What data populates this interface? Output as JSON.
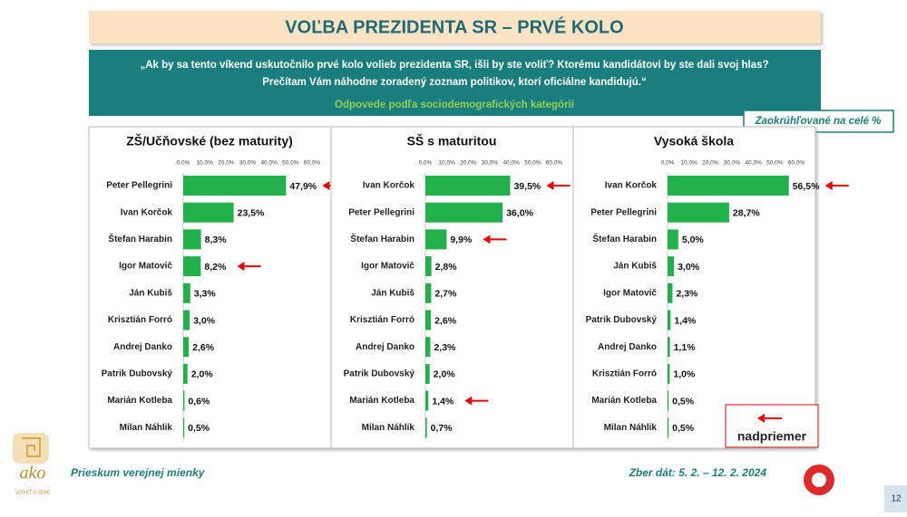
{
  "header": {
    "title": "VOĽBA PREZIDENTA SR – PRVÉ KOLO",
    "question_line1": "„Ak by sa tento víkend uskutočnilo prvé kolo volieb prezidenta SR, išli by ste voliť? Ktorému kandidátovi by ste dali svoj hlas?",
    "question_line2": "Prečítam Vám náhodne zoradený zoznam politikov, ktorí oficiálne kandidujú.“",
    "subtitle": "Odpovede podľa sociodemografických kategórií",
    "note": "Zaokrúhľované na celé %"
  },
  "legend": {
    "label": "nadpriemer"
  },
  "footer": {
    "left": "Prieskum verejnej mienky",
    "right": "Zber dát: 5. 2. – 12. 2. 2024",
    "page": "12"
  },
  "logo": {
    "name": "ako",
    "tagline": "VEDIEŤ O SEBE"
  },
  "chart_data": [
    {
      "type": "bar",
      "title": "ZŠ/Učňovské (bez maturity)",
      "color": "#22b04b",
      "xlim": [
        0,
        60
      ],
      "xticks": [
        {
          "value": 0,
          "label": "0,0%"
        },
        {
          "value": 10,
          "label": "10,0%"
        },
        {
          "value": 20,
          "label": "20,0%"
        },
        {
          "value": 30,
          "label": "30,0%"
        },
        {
          "value": 40,
          "label": "40,0%"
        },
        {
          "value": 50,
          "label": "50,0%"
        },
        {
          "value": 60,
          "label": "60,0%"
        }
      ],
      "categories": [
        "Peter Pellegrini",
        "Ivan Korčok",
        "Štefan Harabin",
        "Igor Matovič",
        "Ján Kubiš",
        "Krisztián Forró",
        "Andrej Danko",
        "Patrik Dubovský",
        "Marián Kotleba",
        "Milan Náhlik"
      ],
      "values": [
        47.9,
        23.5,
        8.3,
        8.2,
        3.3,
        3.0,
        2.6,
        2.0,
        0.6,
        0.5
      ],
      "value_labels": [
        "47,9%",
        "23,5%",
        "8,3%",
        "8,2%",
        "3,3%",
        "3,0%",
        "2,6%",
        "2,0%",
        "0,6%",
        "0,5%"
      ],
      "highlight": [
        0,
        3
      ]
    },
    {
      "type": "bar",
      "title": "SŠ s maturitou",
      "color": "#22b04b",
      "xlim": [
        0,
        60
      ],
      "xticks": [
        {
          "value": 0,
          "label": "0,0%"
        },
        {
          "value": 10,
          "label": "10,0%"
        },
        {
          "value": 20,
          "label": "20,0%"
        },
        {
          "value": 30,
          "label": "30,0%"
        },
        {
          "value": 40,
          "label": "40,0%"
        },
        {
          "value": 50,
          "label": "50,0%"
        },
        {
          "value": 60,
          "label": "60,0%"
        }
      ],
      "categories": [
        "Ivan Korčok",
        "Peter Pellegrini",
        "Štefan Harabin",
        "Igor Matovič",
        "Ján Kubiš",
        "Krisztián Forró",
        "Andrej Danko",
        "Patrik Dubovský",
        "Marián Kotleba",
        "Milan Náhlik"
      ],
      "values": [
        39.5,
        36.0,
        9.9,
        2.8,
        2.7,
        2.6,
        2.3,
        2.0,
        1.4,
        0.7
      ],
      "value_labels": [
        "39,5%",
        "36,0%",
        "9,9%",
        "2,8%",
        "2,7%",
        "2,6%",
        "2,3%",
        "2,0%",
        "1,4%",
        "0,7%"
      ],
      "highlight": [
        0,
        2,
        8
      ]
    },
    {
      "type": "bar",
      "title": "Vysoká škola",
      "color": "#22b04b",
      "xlim": [
        0,
        60
      ],
      "xticks": [
        {
          "value": 0,
          "label": "0,0%"
        },
        {
          "value": 10,
          "label": "10,0%"
        },
        {
          "value": 20,
          "label": "20,0%"
        },
        {
          "value": 30,
          "label": "30,0%"
        },
        {
          "value": 40,
          "label": "40,0%"
        },
        {
          "value": 50,
          "label": "50,0%"
        },
        {
          "value": 60,
          "label": "60,0%"
        }
      ],
      "categories": [
        "Ivan Korčok",
        "Peter Pellegrini",
        "Štefan Harabin",
        "Ján Kubiš",
        "Igor Matovič",
        "Patrik Dubovský",
        "Andrej Danko",
        "Krisztián Forró",
        "Marián Kotleba",
        "Milan Náhlik"
      ],
      "values": [
        56.5,
        28.7,
        5.0,
        3.0,
        2.3,
        1.4,
        1.1,
        1.0,
        0.5,
        0.5
      ],
      "value_labels": [
        "56,5%",
        "28,7%",
        "5,0%",
        "3,0%",
        "2,3%",
        "1,4%",
        "1,1%",
        "1,0%",
        "0,5%",
        "0,5%"
      ],
      "highlight": [
        0
      ]
    }
  ]
}
